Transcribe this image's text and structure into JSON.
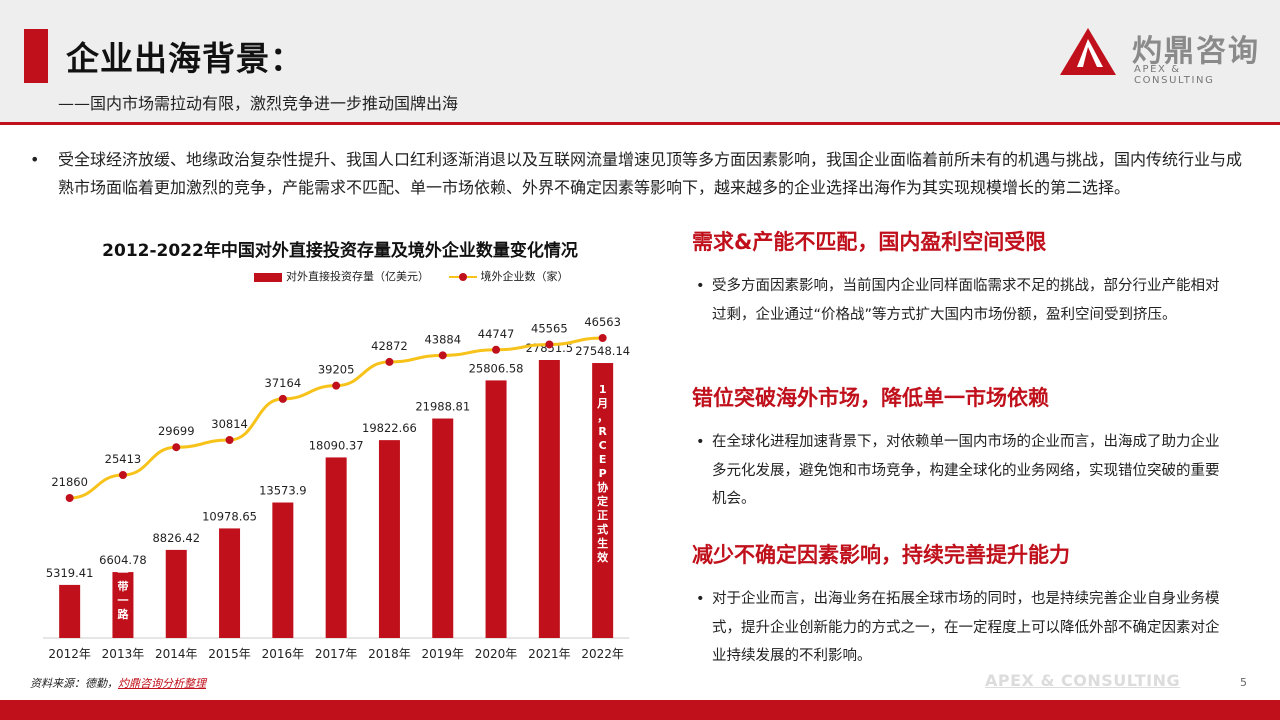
{
  "header": {
    "title": "企业出海背景：",
    "subtitle": "——国内市场需拉动有限，激烈竞争进一步推动国牌出海",
    "logo_name": "灼鼎咨询",
    "logo_sub": "APEX & CONSULTING"
  },
  "intro": {
    "bullet": "•",
    "text": "受全球经济放缓、地缘政治复杂性提升、我国人口红利逐渐消退以及互联网流量增速见顶等多方面因素影响，我国企业面临着前所未有的机遇与挑战，国内传统行业与成熟市场面临着更加激烈的竞争，产能需求不匹配、单一市场依赖、外界不确定因素等影响下，越来越多的企业选择出海作为其实现规模增长的第二选择。"
  },
  "chart_data": {
    "type": "bar",
    "title": "2012-2022年中国对外直接投资存量及境外企业数量变化情况",
    "categories": [
      "2012年",
      "2013年",
      "2014年",
      "2015年",
      "2016年",
      "2017年",
      "2018年",
      "2019年",
      "2020年",
      "2021年",
      "2022年"
    ],
    "series": [
      {
        "name": "对外直接投资存量（亿美元）",
        "type": "bar",
        "values": [
          5319.41,
          6604.78,
          8826.42,
          10978.65,
          13573.9,
          18090.37,
          19822.66,
          21988.81,
          25806.58,
          27851.5,
          27548.14
        ],
        "labels": [
          "5319.41",
          "6604.78",
          "8826.42",
          "10978.65",
          "13573.9",
          "18090.37",
          "19822.66",
          "21988.81",
          "25806.58",
          "27851.5",
          "27548.14"
        ]
      },
      {
        "name": "境外企业数（家）",
        "type": "line",
        "values": [
          21860,
          25413,
          29699,
          30814,
          37164,
          39205,
          42872,
          43884,
          44747,
          45565,
          46563
        ],
        "labels": [
          "21860",
          "25413",
          "29699",
          "30814",
          "37164",
          "39205",
          "42872",
          "43884",
          "44747",
          "45565",
          "46563"
        ]
      }
    ],
    "annotations": [
      {
        "category": "2013年",
        "text": "一带一路"
      },
      {
        "category": "2022年",
        "text": "1月，RCEP协定正式生效"
      }
    ],
    "colors": {
      "bar": "#c0101b",
      "line": "#f7c21a",
      "marker": "#c0101b",
      "bar_text": "#ffffff"
    },
    "grid": false,
    "legend_position": "top"
  },
  "sections": [
    {
      "heading": "需求&产能不匹配，国内盈利空间受限",
      "bullet": "•",
      "body": "受多方面因素影响，当前国内企业同样面临需求不足的挑战，部分行业产能相对过剩，企业通过“价格战”等方式扩大国内市场份额，盈利空间受到挤压。"
    },
    {
      "heading": "错位突破海外市场，降低单一市场依赖",
      "bullet": "•",
      "body": "在全球化进程加速背景下，对依赖单一国内市场的企业而言，出海成了助力企业多元化发展，避免饱和市场竞争，构建全球化的业务网络，实现错位突破的重要机会。"
    },
    {
      "heading": "减少不确定因素影响，持续完善提升能力",
      "bullet": "•",
      "body": "对于企业而言，出海业务在拓展全球市场的同时，也是持续完善企业自身业务模式，提升企业创新能力的方式之一，在一定程度上可以降低外部不确定因素对企业持续发展的不利影响。"
    }
  ],
  "footer": {
    "source_label": "资料来源：德勤，",
    "source_link": "灼鼎咨询分析整理",
    "watermark": "APEX & CONSULTING",
    "page_number": "5"
  },
  "theme": {
    "accent": "#c0101b",
    "header_bg": "#eeeeee"
  }
}
